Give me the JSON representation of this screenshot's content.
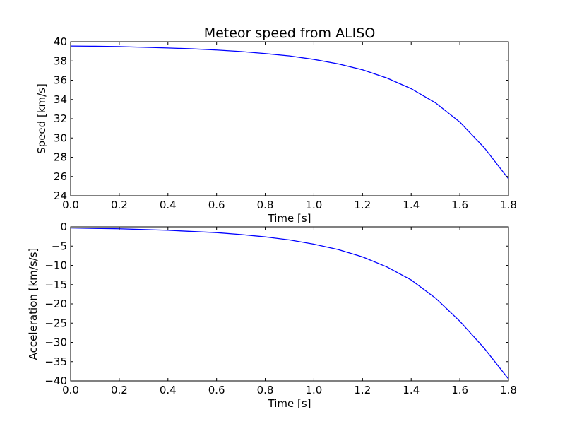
{
  "chart_data": [
    {
      "type": "line",
      "title": "Meteor speed from ALISO",
      "xlabel": "Time [s]",
      "ylabel": "Speed [km/s]",
      "xlim": [
        0.0,
        1.8
      ],
      "ylim": [
        24,
        40
      ],
      "xticks": [
        "0.0",
        "0.2",
        "0.4",
        "0.6",
        "0.8",
        "1.0",
        "1.2",
        "1.4",
        "1.6",
        "1.8"
      ],
      "yticks": [
        "24",
        "26",
        "28",
        "30",
        "32",
        "34",
        "36",
        "38",
        "40"
      ],
      "grid": false,
      "series": [
        {
          "color": "#0000ff",
          "x": [
            0.0,
            0.1,
            0.2,
            0.3,
            0.4,
            0.5,
            0.6,
            0.7,
            0.8,
            0.9,
            1.0,
            1.1,
            1.2,
            1.3,
            1.4,
            1.5,
            1.6,
            1.7,
            1.8
          ],
          "y": [
            39.55,
            39.53,
            39.49,
            39.42,
            39.35,
            39.26,
            39.14,
            38.98,
            38.77,
            38.52,
            38.16,
            37.7,
            37.08,
            36.23,
            35.12,
            33.65,
            31.65,
            29.0,
            25.75
          ]
        }
      ]
    },
    {
      "type": "line",
      "title": "",
      "xlabel": "Time [s]",
      "ylabel": "Acceleration [km/s/s]",
      "xlim": [
        0.0,
        1.8
      ],
      "ylim": [
        -40,
        0
      ],
      "xticks": [
        "0.0",
        "0.2",
        "0.4",
        "0.6",
        "0.8",
        "1.0",
        "1.2",
        "1.4",
        "1.6",
        "1.8"
      ],
      "yticks": [
        "0",
        "−5",
        "−10",
        "−15",
        "−20",
        "−25",
        "−30",
        "−35",
        "−40"
      ],
      "grid": false,
      "series": [
        {
          "color": "#0000ff",
          "x": [
            0.0,
            0.1,
            0.2,
            0.3,
            0.4,
            0.5,
            0.6,
            0.7,
            0.8,
            0.9,
            1.0,
            1.1,
            1.2,
            1.3,
            1.4,
            1.5,
            1.6,
            1.7,
            1.8
          ],
          "y": [
            -0.3,
            -0.4,
            -0.5,
            -0.7,
            -0.9,
            -1.2,
            -1.5,
            -2.0,
            -2.6,
            -3.4,
            -4.5,
            -5.9,
            -7.8,
            -10.4,
            -13.8,
            -18.5,
            -24.5,
            -31.5,
            -39.5
          ]
        }
      ]
    }
  ]
}
